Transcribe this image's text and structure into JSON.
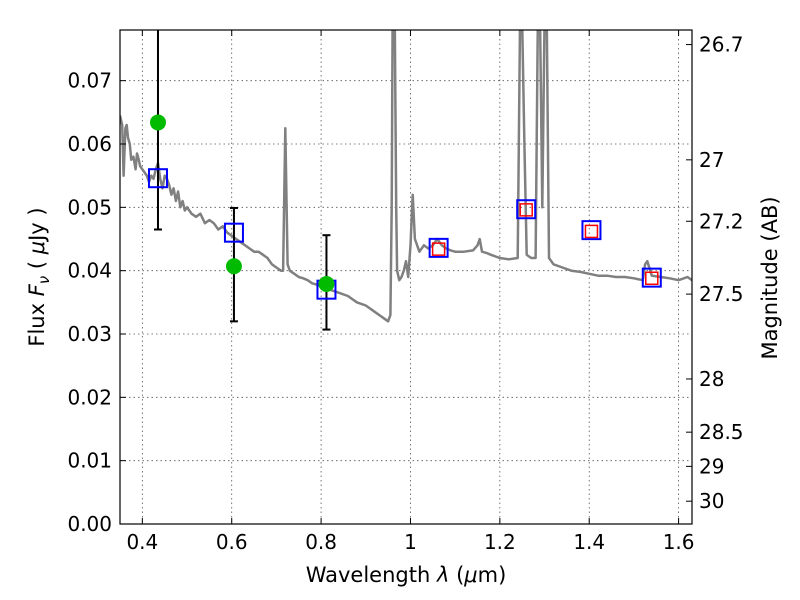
{
  "chart_data": {
    "type": "scatter",
    "title": "",
    "xlabel": {
      "prefix": "Wavelength  ",
      "symbol": "λ",
      "unit_open": " (",
      "unit_mu": "μ",
      "unit_rest": "m)"
    },
    "ylabel": {
      "prefix": "Flux  ",
      "symbol": "F",
      "subscript": "ν",
      "unit_open": "  ( ",
      "unit_mu": "μ",
      "unit_rest": "Jy )"
    },
    "y2label": "Magnitude (AB)",
    "xlim": [
      0.35,
      1.63
    ],
    "ylim": [
      0.0,
      0.078
    ],
    "xticks": [
      {
        "value": 0.4,
        "label": "0.4"
      },
      {
        "value": 0.6,
        "label": "0.6"
      },
      {
        "value": 0.8,
        "label": "0.8"
      },
      {
        "value": 1.0,
        "label": "1"
      },
      {
        "value": 1.2,
        "label": "1.2"
      },
      {
        "value": 1.4,
        "label": "1.4"
      },
      {
        "value": 1.6,
        "label": "1.6"
      }
    ],
    "yticks": [
      {
        "value": 0.0,
        "label": "0.00"
      },
      {
        "value": 0.01,
        "label": "0.01"
      },
      {
        "value": 0.02,
        "label": "0.02"
      },
      {
        "value": 0.03,
        "label": "0.03"
      },
      {
        "value": 0.04,
        "label": "0.04"
      },
      {
        "value": 0.05,
        "label": "0.05"
      },
      {
        "value": 0.06,
        "label": "0.06"
      },
      {
        "value": 0.07,
        "label": "0.07"
      }
    ],
    "y2ticks": [
      {
        "label": "26.7",
        "flux": 0.0757
      },
      {
        "label": "27",
        "flux": 0.0575
      },
      {
        "label": "27.2",
        "flux": 0.0478
      },
      {
        "label": "27.5",
        "flux": 0.0363
      },
      {
        "label": "28",
        "flux": 0.0229
      },
      {
        "label": "28.5",
        "flux": 0.0145
      },
      {
        "label": "29",
        "flux": 0.0091
      },
      {
        "label": "30",
        "flux": 0.0036
      }
    ],
    "series": [
      {
        "name": "model_spectrum",
        "style": "line",
        "color": "#808080",
        "x": [
          0.35,
          0.355,
          0.358,
          0.362,
          0.365,
          0.368,
          0.372,
          0.375,
          0.38,
          0.385,
          0.388,
          0.392,
          0.395,
          0.4,
          0.405,
          0.41,
          0.415,
          0.42,
          0.425,
          0.43,
          0.435,
          0.44,
          0.445,
          0.45,
          0.455,
          0.46,
          0.465,
          0.47,
          0.475,
          0.48,
          0.485,
          0.49,
          0.495,
          0.5,
          0.505,
          0.51,
          0.52,
          0.53,
          0.54,
          0.55,
          0.56,
          0.57,
          0.58,
          0.59,
          0.6,
          0.61,
          0.62,
          0.63,
          0.64,
          0.65,
          0.66,
          0.67,
          0.68,
          0.69,
          0.7,
          0.71,
          0.715,
          0.72,
          0.725,
          0.73,
          0.74,
          0.75,
          0.76,
          0.77,
          0.78,
          0.79,
          0.8,
          0.82,
          0.84,
          0.86,
          0.88,
          0.9,
          0.92,
          0.94,
          0.95,
          0.955,
          0.958,
          0.96,
          0.962,
          0.965,
          0.968,
          0.97,
          0.975,
          0.98,
          0.985,
          0.99,
          0.995,
          1.0,
          1.005,
          1.01,
          1.02,
          1.03,
          1.04,
          1.05,
          1.06,
          1.07,
          1.08,
          1.09,
          1.1,
          1.12,
          1.14,
          1.15,
          1.155,
          1.16,
          1.17,
          1.18,
          1.2,
          1.22,
          1.24,
          1.245,
          1.25,
          1.255,
          1.26,
          1.27,
          1.28,
          1.285,
          1.29,
          1.295,
          1.3,
          1.305,
          1.31,
          1.32,
          1.34,
          1.36,
          1.38,
          1.4,
          1.42,
          1.44,
          1.46,
          1.48,
          1.5,
          1.52,
          1.525,
          1.53,
          1.54,
          1.56,
          1.58,
          1.6,
          1.62,
          1.63
        ],
        "y": [
          0.0645,
          0.063,
          0.055,
          0.0625,
          0.063,
          0.061,
          0.06,
          0.0575,
          0.058,
          0.056,
          0.0585,
          0.0575,
          0.0565,
          0.056,
          0.0555,
          0.055,
          0.054,
          0.055,
          0.0545,
          0.056,
          0.057,
          0.0545,
          0.053,
          0.055,
          0.0545,
          0.0535,
          0.052,
          0.053,
          0.051,
          0.0525,
          0.05,
          0.051,
          0.0495,
          0.05,
          0.0495,
          0.049,
          0.0485,
          0.049,
          0.0475,
          0.048,
          0.0475,
          0.0465,
          0.047,
          0.046,
          0.0455,
          0.045,
          0.0445,
          0.044,
          0.0435,
          0.043,
          0.043,
          0.0425,
          0.042,
          0.041,
          0.0405,
          0.04,
          0.04,
          0.0625,
          0.041,
          0.04,
          0.0395,
          0.039,
          0.0388,
          0.0385,
          0.038,
          0.0378,
          0.0375,
          0.037,
          0.0365,
          0.036,
          0.035,
          0.0345,
          0.0335,
          0.0325,
          0.032,
          0.033,
          0.05,
          0.079,
          0.079,
          0.079,
          0.05,
          0.04,
          0.0385,
          0.039,
          0.04,
          0.0415,
          0.039,
          0.044,
          0.052,
          0.045,
          0.043,
          0.044,
          0.0435,
          0.044,
          0.045,
          0.044,
          0.0435,
          0.0432,
          0.043,
          0.043,
          0.0432,
          0.044,
          0.045,
          0.043,
          0.0428,
          0.0425,
          0.042,
          0.0418,
          0.042,
          0.079,
          0.079,
          0.06,
          0.0425,
          0.042,
          0.042,
          0.079,
          0.079,
          0.05,
          0.079,
          0.079,
          0.042,
          0.041,
          0.0405,
          0.04,
          0.0398,
          0.0395,
          0.0392,
          0.0392,
          0.039,
          0.039,
          0.0388,
          0.0385,
          0.041,
          0.0415,
          0.0392,
          0.039,
          0.0388,
          0.0385,
          0.039,
          0.0385
        ]
      },
      {
        "name": "model_photometry",
        "style": "open-square",
        "color": "#0000ff",
        "x": [
          0.435,
          0.605,
          0.812,
          1.063,
          1.259,
          1.405,
          1.54
        ],
        "y": [
          0.0546,
          0.046,
          0.037,
          0.0436,
          0.0497,
          0.0464,
          0.0389
        ]
      },
      {
        "name": "model_photometry_small",
        "style": "open-square",
        "color": "#ff0000",
        "x": [
          1.063,
          1.259,
          1.405,
          1.54
        ],
        "y": [
          0.0434,
          0.0496,
          0.0462,
          0.0388
        ]
      },
      {
        "name": "observed",
        "style": "filled-circle",
        "color": "#00bb00",
        "x": [
          0.435,
          0.605,
          0.812
        ],
        "y": [
          0.0634,
          0.0407,
          0.0379
        ]
      },
      {
        "name": "observed_errors",
        "style": "errorbar",
        "color": "#000000",
        "x": [
          0.435,
          0.605,
          0.812
        ],
        "y": [
          0.0634,
          0.0407,
          0.0379
        ],
        "ylow": [
          0.0465,
          0.032,
          0.0307
        ],
        "yhigh": [
          0.079,
          0.0499,
          0.0456
        ]
      }
    ]
  }
}
